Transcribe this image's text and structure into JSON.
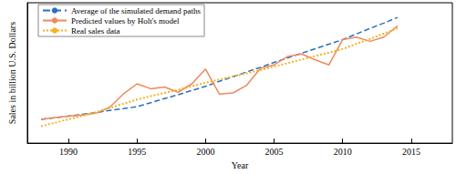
{
  "chart_data": {
    "type": "line",
    "y_label": "Sales in billion U.S. Dollars",
    "x_label": "Year",
    "x": [
      1988,
      1989,
      1990,
      1991,
      1992,
      1993,
      1994,
      1995,
      1996,
      1997,
      1998,
      1999,
      2000,
      2001,
      2002,
      2003,
      2004,
      2005,
      2006,
      2007,
      2008,
      2009,
      2010,
      2011,
      2012,
      2013,
      2014
    ],
    "xlim": [
      1987,
      2018
    ],
    "xticks": [
      1990,
      1995,
      2000,
      2005,
      2010,
      2015
    ],
    "ylim": [
      0,
      400
    ],
    "tick_labels": "x",
    "grid": false,
    "legend": "upper left",
    "series": [
      {
        "name": "Average of the simulated demand paths",
        "color": "#2b6fc4",
        "line_style": "dashed",
        "values": [
          68,
          72,
          77,
          82,
          87,
          93,
          98,
          104,
          115,
          127,
          138,
          150,
          162,
          176,
          189,
          203,
          216,
          230,
          243,
          256,
          269,
          282,
          295,
          311,
          327,
          342,
          358
        ]
      },
      {
        "name": "Predicted values by Holt's model",
        "color": "#f0895c",
        "line_style": "solid",
        "values": [
          68,
          73,
          77,
          80,
          85,
          102,
          140,
          169,
          155,
          160,
          145,
          169,
          211,
          140,
          143,
          165,
          213,
          223,
          247,
          254,
          237,
          223,
          295,
          302,
          290,
          302,
          334
        ]
      },
      {
        "name": "Real sales data",
        "color": "#f5b21b",
        "line_style": "dotted",
        "values": [
          48,
          58,
          68,
          78,
          88,
          100,
          112,
          124,
          134,
          143,
          152,
          162,
          172,
          181,
          190,
          199,
          208,
          218,
          228,
          238,
          248,
          258,
          268,
          283,
          297,
          312,
          327
        ]
      }
    ]
  }
}
